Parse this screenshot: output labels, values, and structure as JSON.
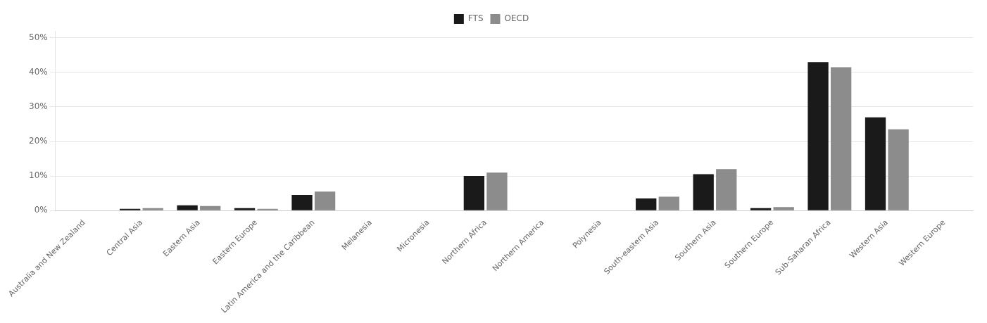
{
  "chart_data": {
    "type": "bar",
    "categories": [
      "Australia and New Zealand",
      "Central Asia",
      "Eastern Asia",
      "Eastern Europe",
      "Latin America and the Caribbean",
      "Melanesia",
      "Micronesia",
      "Northern Africa",
      "Northern America",
      "Polynesia",
      "South-eastern Asia",
      "Southern Asia",
      "Southern Europe",
      "Sub-Saharan Africa",
      "Western Asia",
      "Western Europe"
    ],
    "series": [
      {
        "name": "FTS",
        "color": "#1a1a1a",
        "values": [
          0.001,
          0.005,
          0.015,
          0.007,
          0.045,
          0.001,
          0.001,
          0.1,
          0.001,
          0.001,
          0.035,
          0.105,
          0.007,
          0.43,
          0.27,
          0.001
        ]
      },
      {
        "name": "OECD",
        "color": "#8c8c8c",
        "values": [
          0.001,
          0.007,
          0.013,
          0.005,
          0.055,
          0.001,
          0.001,
          0.11,
          0.001,
          0.001,
          0.04,
          0.12,
          0.01,
          0.415,
          0.235,
          0.001
        ]
      }
    ],
    "ylim": [
      0,
      0.52
    ],
    "yticks": [
      {
        "value": 0.0,
        "label": "0%"
      },
      {
        "value": 0.1,
        "label": "10%"
      },
      {
        "value": 0.2,
        "label": "20%"
      },
      {
        "value": 0.3,
        "label": "30%"
      },
      {
        "value": 0.4,
        "label": "40%"
      },
      {
        "value": 0.5,
        "label": "50%"
      }
    ],
    "grid": true,
    "legend": "top"
  }
}
